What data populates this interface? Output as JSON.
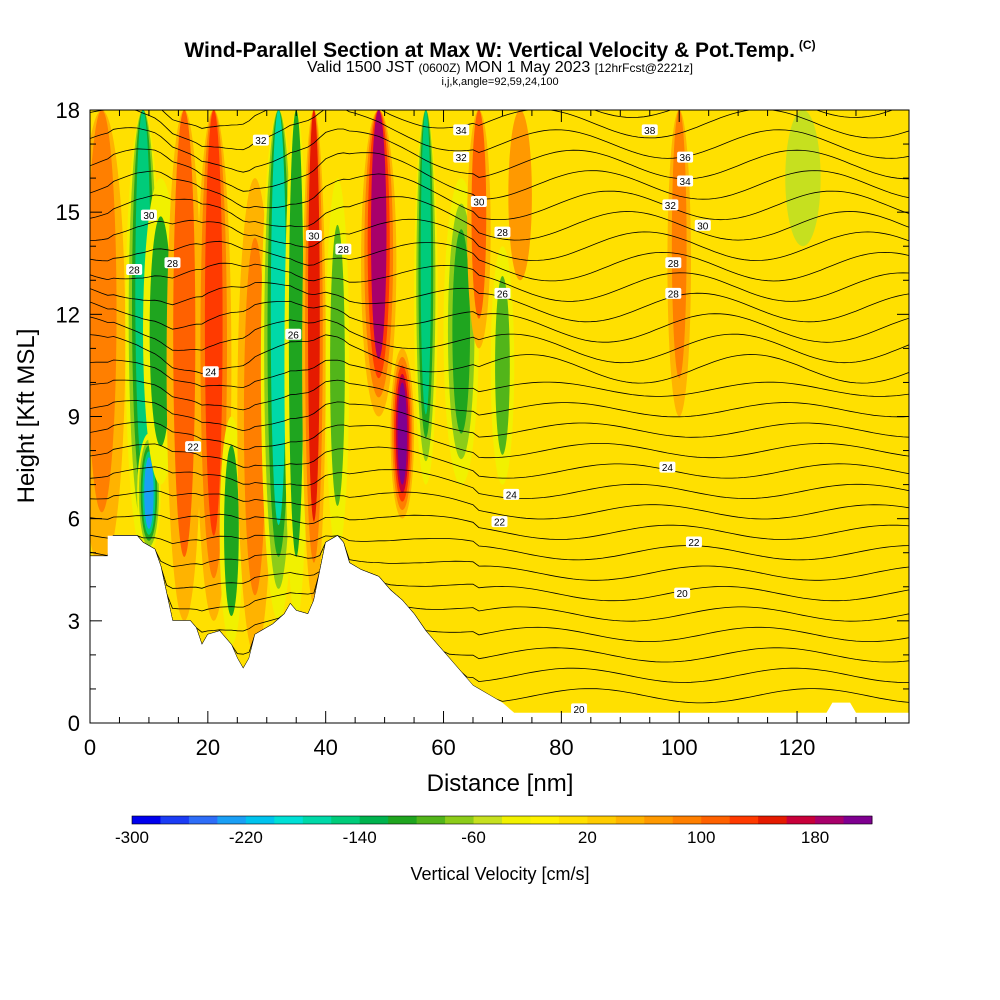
{
  "header": {
    "title": "Wind-Parallel Section at Max W: Vertical Velocity & Pot.Temp.",
    "copyright": "(C)",
    "valid_pre": "Valid 1500 JST",
    "valid_utc": "(0600Z)",
    "valid_date": "MON 1 May 2023",
    "valid_fcst": "[12hrFcst@2221z]",
    "indices": "i,j,k,angle=92,59,24,100"
  },
  "chart_data": {
    "type": "heatmap",
    "xlabel": "Distance [nm]",
    "ylabel": "Height [Kft MSL]",
    "xlim": [
      0,
      139
    ],
    "ylim": [
      0,
      18
    ],
    "x_ticks": [
      0,
      20,
      40,
      60,
      80,
      100,
      120
    ],
    "y_ticks": [
      0,
      3,
      6,
      9,
      12,
      15,
      18
    ],
    "grid": false,
    "colorbar": {
      "label": "Vertical Velocity [cm/s]",
      "orientation": "horizontal",
      "placement": "bottom",
      "min": -300,
      "max": 220,
      "step": 20,
      "tick_labels": [
        "-300",
        "-220",
        "-140",
        "-60",
        "20",
        "100",
        "180"
      ],
      "tick_values": [
        -300,
        -220,
        -140,
        -60,
        20,
        100,
        180
      ],
      "colors": [
        "#0000ee",
        "#1b3cf5",
        "#2e6df8",
        "#1a9ff5",
        "#00c3ee",
        "#00e0d6",
        "#00d9a8",
        "#00cc7a",
        "#00b34e",
        "#1fa51f",
        "#52b51a",
        "#8ccc19",
        "#c6e01f",
        "#f1f100",
        "#fff200",
        "#ffe000",
        "#ffcc00",
        "#ffb300",
        "#ff9900",
        "#ff7f00",
        "#ff6100",
        "#ff3a00",
        "#e51a00",
        "#c8003a",
        "#a8006a",
        "#7f0090"
      ]
    },
    "terrain": [
      [
        0,
        4.9
      ],
      [
        3,
        4.9
      ],
      [
        3,
        5.5
      ],
      [
        8,
        5.5
      ],
      [
        9,
        5.3
      ],
      [
        11,
        5.1
      ],
      [
        12,
        4.6
      ],
      [
        13,
        3.8
      ],
      [
        14,
        3.0
      ],
      [
        17,
        3.0
      ],
      [
        18,
        2.8
      ],
      [
        19,
        2.3
      ],
      [
        20,
        2.6
      ],
      [
        22,
        2.7
      ],
      [
        23,
        2.5
      ],
      [
        24,
        2.3
      ],
      [
        25,
        1.9
      ],
      [
        26,
        1.6
      ],
      [
        27,
        1.9
      ],
      [
        28,
        2.6
      ],
      [
        30,
        2.8
      ],
      [
        31,
        2.9
      ],
      [
        33,
        3.2
      ],
      [
        34,
        3.5
      ],
      [
        35,
        3.3
      ],
      [
        37,
        3.2
      ],
      [
        38,
        3.6
      ],
      [
        40,
        5.3
      ],
      [
        42,
        5.5
      ],
      [
        43,
        5.3
      ],
      [
        44,
        4.7
      ],
      [
        46,
        4.5
      ],
      [
        49,
        4.3
      ],
      [
        51,
        3.9
      ],
      [
        53,
        3.6
      ],
      [
        55,
        3.2
      ],
      [
        57,
        2.7
      ],
      [
        59,
        2.3
      ],
      [
        61,
        1.9
      ],
      [
        63,
        1.5
      ],
      [
        65,
        1.1
      ],
      [
        67,
        0.9
      ],
      [
        70,
        0.6
      ],
      [
        72,
        0.3
      ],
      [
        80,
        0.3
      ],
      [
        97,
        0.3
      ],
      [
        125,
        0.3
      ],
      [
        126,
        0.6
      ],
      [
        129,
        0.6
      ],
      [
        130,
        0.3
      ],
      [
        139,
        0.3
      ]
    ],
    "w_field": [
      {
        "x": 2,
        "w": 90,
        "zmin": 4.5,
        "zmax": 18,
        "width": 4
      },
      {
        "x": 9,
        "w": -160,
        "zmin": 5.0,
        "zmax": 18,
        "width": 3
      },
      {
        "x": 10,
        "w": -230,
        "zmin": 5.0,
        "zmax": 8.5,
        "width": 2
      },
      {
        "x": 12,
        "w": -110,
        "zmin": 7,
        "zmax": 16,
        "width": 3
      },
      {
        "x": 16,
        "w": 110,
        "zmin": 3,
        "zmax": 18,
        "width": 3
      },
      {
        "x": 21,
        "w": 120,
        "zmin": 3,
        "zmax": 18,
        "width": 3
      },
      {
        "x": 24,
        "w": -110,
        "zmin": 2.3,
        "zmax": 9,
        "width": 2
      },
      {
        "x": 28,
        "w": 90,
        "zmin": 2,
        "zmax": 16,
        "width": 3
      },
      {
        "x": 32,
        "w": -180,
        "zmin": 3,
        "zmax": 18,
        "width": 3
      },
      {
        "x": 35,
        "w": -110,
        "zmin": 3,
        "zmax": 18,
        "width": 2
      },
      {
        "x": 38,
        "w": 140,
        "zmin": 3.5,
        "zmax": 18,
        "width": 2
      },
      {
        "x": 42,
        "w": -90,
        "zmin": 5,
        "zmax": 16,
        "width": 2
      },
      {
        "x": 49,
        "w": 180,
        "zmin": 9,
        "zmax": 18,
        "width": 3
      },
      {
        "x": 53,
        "w": 220,
        "zmin": 6,
        "zmax": 11,
        "width": 2
      },
      {
        "x": 57,
        "w": -160,
        "zmin": 7,
        "zmax": 18,
        "width": 2
      },
      {
        "x": 63,
        "w": -120,
        "zmin": 7,
        "zmax": 16,
        "width": 3
      },
      {
        "x": 66,
        "w": 110,
        "zmin": 11,
        "zmax": 18,
        "width": 2
      },
      {
        "x": 70,
        "w": -90,
        "zmin": 7,
        "zmax": 14,
        "width": 2
      },
      {
        "x": 73,
        "w": 60,
        "zmin": 13,
        "zmax": 18,
        "width": 2
      },
      {
        "x": 100,
        "w": 90,
        "zmin": 9,
        "zmax": 18,
        "width": 2
      },
      {
        "x": 121,
        "w": -60,
        "zmin": 14,
        "zmax": 18,
        "width": 3
      }
    ],
    "theta_labels": [
      {
        "text": "32",
        "x": 29,
        "z": 17.1
      },
      {
        "text": "30",
        "x": 10,
        "z": 14.9
      },
      {
        "text": "28",
        "x": 7.5,
        "z": 13.3
      },
      {
        "text": "28",
        "x": 14,
        "z": 13.5
      },
      {
        "text": "30",
        "x": 38,
        "z": 14.3
      },
      {
        "text": "28",
        "x": 43,
        "z": 13.9
      },
      {
        "text": "26",
        "x": 34.5,
        "z": 11.4
      },
      {
        "text": "24",
        "x": 20.5,
        "z": 10.3
      },
      {
        "text": "22",
        "x": 17.5,
        "z": 8.1
      },
      {
        "text": "34",
        "x": 63,
        "z": 17.4
      },
      {
        "text": "32",
        "x": 63,
        "z": 16.6
      },
      {
        "text": "30",
        "x": 66,
        "z": 15.3
      },
      {
        "text": "28",
        "x": 70,
        "z": 14.4
      },
      {
        "text": "26",
        "x": 70,
        "z": 12.6
      },
      {
        "text": "38",
        "x": 95,
        "z": 17.4
      },
      {
        "text": "36",
        "x": 101,
        "z": 16.6
      },
      {
        "text": "34",
        "x": 101,
        "z": 15.9
      },
      {
        "text": "32",
        "x": 98.5,
        "z": 15.2
      },
      {
        "text": "30",
        "x": 104,
        "z": 14.6
      },
      {
        "text": "28",
        "x": 99,
        "z": 13.5
      },
      {
        "text": "28",
        "x": 99,
        "z": 12.6
      },
      {
        "text": "24",
        "x": 98,
        "z": 7.5
      },
      {
        "text": "24",
        "x": 71.5,
        "z": 6.7
      },
      {
        "text": "22",
        "x": 69.5,
        "z": 5.9
      },
      {
        "text": "22",
        "x": 102.5,
        "z": 5.3
      },
      {
        "text": "20",
        "x": 100.5,
        "z": 3.8
      },
      {
        "text": "20",
        "x": 83,
        "z": 0.4
      }
    ]
  }
}
